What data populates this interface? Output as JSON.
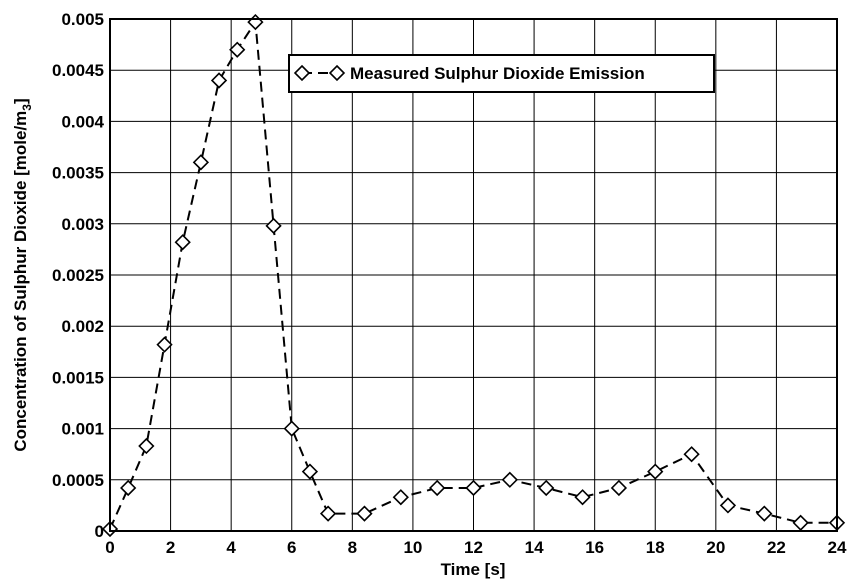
{
  "chart_data": {
    "type": "line",
    "title": "",
    "xlabel": "Time [s]",
    "ylabel": "Concentration of Sulphur Dioxide [mole/m",
    "ylabel_subscript": "3",
    "ylabel_close": "]",
    "xlim": [
      0,
      24
    ],
    "ylim": [
      0,
      0.005
    ],
    "x_ticks": [
      0,
      2,
      4,
      6,
      8,
      10,
      12,
      14,
      16,
      18,
      20,
      22,
      24
    ],
    "x_tick_labels": [
      "0",
      "2",
      "4",
      "6",
      "8",
      "10",
      "12",
      "14",
      "16",
      "18",
      "20",
      "22",
      "24"
    ],
    "y_ticks": [
      0,
      0.0005,
      0.001,
      0.0015,
      0.002,
      0.0025,
      0.003,
      0.0035,
      0.004,
      0.0045,
      0.005
    ],
    "y_tick_labels": [
      "0",
      "0.0005",
      "0.001",
      "0.0015",
      "0.002",
      "0.0025",
      "0.003",
      "0.0035",
      "0.004",
      "0.0045",
      "0.005"
    ],
    "grid": true,
    "legend_position": "top-right",
    "series": [
      {
        "name": "Measured Sulphur Dioxide Emission",
        "marker": "diamond",
        "line_style": "dashed",
        "x": [
          0,
          0.6,
          1.2,
          1.8,
          2.4,
          3.0,
          3.6,
          4.2,
          4.8,
          5.4,
          6.0,
          6.6,
          7.2,
          8.4,
          9.6,
          10.8,
          12.0,
          13.2,
          14.4,
          15.6,
          16.8,
          18.0,
          19.2,
          20.4,
          21.6,
          22.8,
          24.0
        ],
        "y": [
          2e-05,
          0.00042,
          0.00083,
          0.00182,
          0.00282,
          0.0036,
          0.0044,
          0.0047,
          0.00497,
          0.00298,
          0.001,
          0.00058,
          0.00017,
          0.00017,
          0.00033,
          0.00042,
          0.00042,
          0.0005,
          0.00042,
          0.00033,
          0.00042,
          0.00058,
          0.00075,
          0.00025,
          0.00017,
          8e-05,
          8e-05
        ]
      }
    ]
  }
}
